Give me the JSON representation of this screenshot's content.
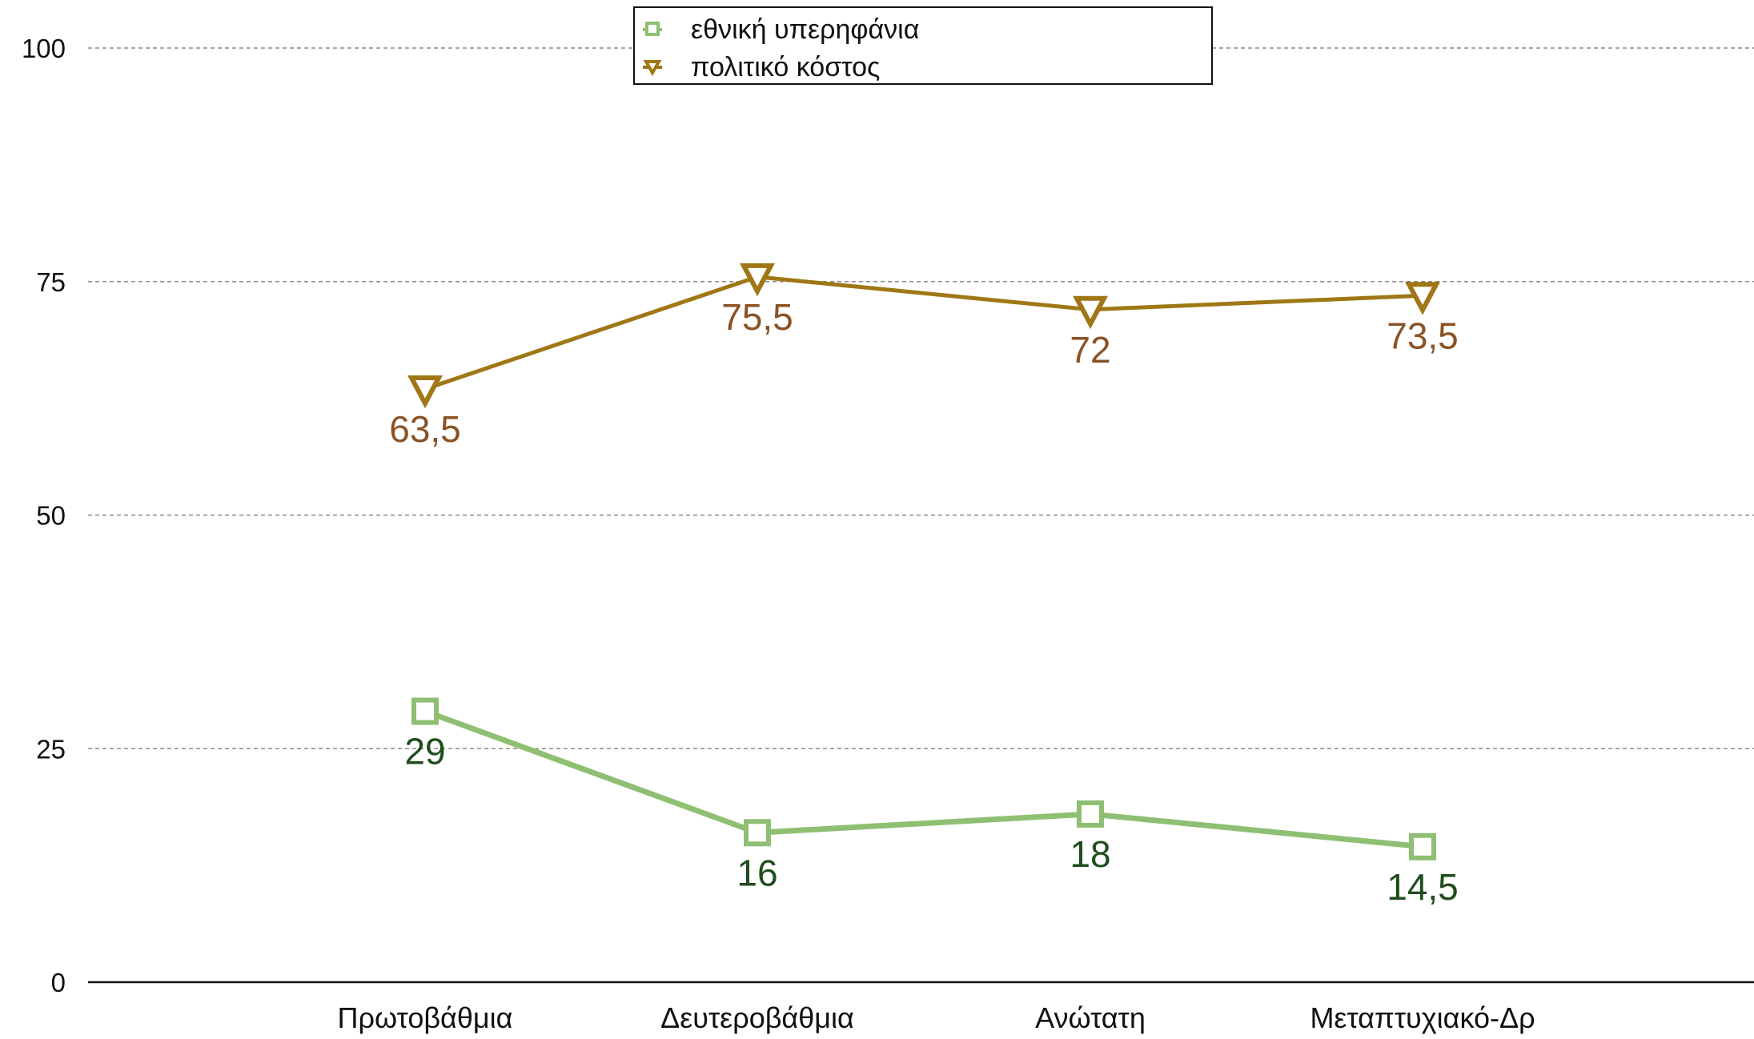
{
  "chart_data": {
    "type": "line",
    "categories": [
      "Πρωτοβάθμια",
      "Δευτεροβάθμια",
      "Ανώτατη",
      "Μεταπτυχιακό-Δρ"
    ],
    "series": [
      {
        "name": "εθνική υπερηφάνια",
        "values": [
          29,
          16,
          18,
          14.5
        ],
        "labels": [
          "29",
          "16",
          "18",
          "14,5"
        ],
        "color": "#8fbf73",
        "label_color": "#1f4d1c",
        "marker": "square"
      },
      {
        "name": "πολιτικό κόστος",
        "values": [
          63.5,
          75.5,
          72,
          73.5
        ],
        "labels": [
          "63,5",
          "75,5",
          "72",
          "73,5"
        ],
        "color": "#a07717",
        "label_color": "#8b5224",
        "marker": "triangle-down"
      }
    ],
    "ylim": [
      0,
      100
    ],
    "yticks": [
      0,
      25,
      50,
      75,
      100
    ],
    "grid": true,
    "legend": "top-center",
    "title": "",
    "xlabel": "",
    "ylabel": ""
  }
}
